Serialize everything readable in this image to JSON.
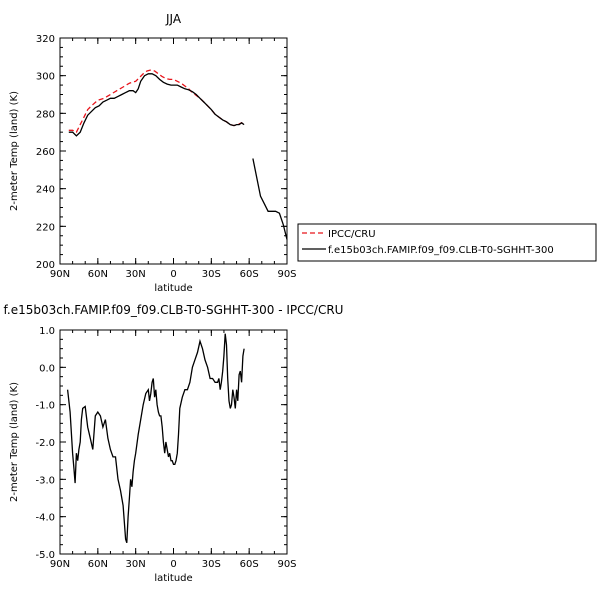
{
  "chart_data": [
    {
      "type": "line",
      "title": "JJA",
      "xlabel": "latitude",
      "ylabel": "2-meter Temp (land) (K)",
      "xlim": [
        90,
        -90
      ],
      "ylim": [
        200,
        320
      ],
      "xtick_values": [
        90,
        60,
        30,
        0,
        -30,
        -60,
        -90
      ],
      "xtick_labels": [
        "90N",
        "60N",
        "30N",
        "0",
        "30S",
        "60S",
        "90S"
      ],
      "ytick_values": [
        200,
        220,
        240,
        260,
        280,
        300,
        320
      ],
      "ytick_labels": [
        "200",
        "220",
        "240",
        "260",
        "280",
        "300",
        "320"
      ],
      "legend_position": "right",
      "series": [
        {
          "name": "IPCC/CRU",
          "color": "#e8141b",
          "dash": true,
          "x": [
            83,
            80,
            77,
            74,
            71,
            68,
            65,
            60,
            55,
            50,
            45,
            40,
            35,
            30,
            27,
            24,
            21,
            18,
            15,
            12,
            9,
            6,
            3,
            0,
            -3,
            -6,
            -9,
            -12,
            -15,
            -18,
            -21,
            -24,
            -27,
            -30,
            -33,
            -36,
            -39,
            -42,
            -45,
            -48,
            -51,
            -54,
            -56
          ],
          "y": [
            271,
            271,
            270,
            274,
            278,
            282,
            284,
            287,
            288,
            290,
            292,
            294,
            296,
            297,
            299,
            301,
            302.5,
            303,
            302.5,
            301,
            299.5,
            298.5,
            298,
            298,
            297,
            296,
            294.5,
            293,
            291,
            289.5,
            288,
            286,
            284,
            282,
            279.5,
            278,
            276.5,
            275.5,
            274,
            273.5,
            274,
            275,
            274
          ]
        },
        {
          "name": "f.e15b03ch.FAMIP.f09_f09.CLB-T0-SGHHT-300",
          "color": "#000000",
          "dash": false,
          "x": [
            83,
            80,
            77,
            74,
            71,
            68,
            65,
            62,
            59,
            56,
            53,
            50,
            47,
            44,
            41,
            38,
            35,
            32,
            30,
            28,
            26,
            23,
            20,
            17,
            14,
            11,
            8,
            5,
            2,
            0,
            -3,
            -6,
            -9,
            -12,
            -15,
            -18,
            -21,
            -24,
            -27,
            -30,
            -33,
            -36,
            -39,
            -42,
            -45,
            -48,
            -50,
            -52,
            -54,
            -56
          ],
          "y": [
            270,
            270,
            268,
            270,
            275,
            279,
            281,
            283,
            284,
            286,
            287,
            288,
            288,
            289,
            290,
            291,
            292,
            292,
            291,
            293,
            297,
            300,
            301,
            301,
            300,
            298,
            296.5,
            295.5,
            295,
            295,
            295,
            294,
            293,
            292.5,
            291.5,
            290,
            288,
            286,
            284,
            282,
            279.5,
            278,
            276.5,
            275.5,
            274,
            273.5,
            274,
            274,
            275,
            274
          ],
          "x2": [
            -63,
            -66,
            -69,
            -72,
            -75,
            -78,
            -81,
            -84,
            -87,
            -90
          ],
          "y2": [
            256,
            246,
            236,
            232,
            228,
            228,
            228,
            227,
            221,
            213
          ]
        }
      ]
    },
    {
      "type": "line",
      "title": "f.e15b03ch.FAMIP.f09_f09.CLB-T0-SGHHT-300 - IPCC/CRU",
      "xlabel": "latitude",
      "ylabel": "2-meter Temp (land) (K)",
      "xlim": [
        90,
        -90
      ],
      "ylim": [
        -5,
        1
      ],
      "xtick_values": [
        90,
        60,
        30,
        0,
        -30,
        -60,
        -90
      ],
      "xtick_labels": [
        "90N",
        "60N",
        "30N",
        "0",
        "30S",
        "60S",
        "90S"
      ],
      "ytick_values": [
        1,
        0,
        -1,
        -2,
        -3,
        -4,
        -5
      ],
      "ytick_labels": [
        "1.0",
        "0.0",
        "-1.0",
        "-2.0",
        "-3.0",
        "-4.0",
        "-5.0"
      ],
      "series": [
        {
          "name": "",
          "color": "#000000",
          "dash": false,
          "x": [
            84,
            82,
            80,
            79,
            78,
            77,
            76,
            75,
            74,
            73,
            72,
            70,
            68,
            66,
            64,
            62,
            60,
            58,
            56,
            54,
            52,
            50,
            48,
            46,
            44,
            42,
            40,
            38,
            37,
            36,
            35,
            34,
            33,
            32,
            31,
            30,
            28,
            26,
            24,
            22,
            20,
            19,
            18,
            17,
            16,
            15,
            14,
            13,
            12,
            11,
            10,
            9,
            8,
            7,
            6,
            5,
            4,
            3,
            2,
            1,
            0,
            -1,
            -2,
            -3,
            -4,
            -5,
            -7,
            -9,
            -11,
            -13,
            -15,
            -17,
            -19,
            -21,
            -23,
            -25,
            -27,
            -29,
            -31,
            -33,
            -35,
            -36,
            -37,
            -38,
            -39,
            -40,
            -41,
            -42,
            -43,
            -44,
            -45,
            -46,
            -47,
            -48,
            -49,
            -50,
            -51,
            -52,
            -53,
            -54,
            -55,
            -56
          ],
          "y": [
            -0.6,
            -1.2,
            -2.3,
            -2.7,
            -3.1,
            -2.3,
            -2.5,
            -2.2,
            -2.0,
            -1.4,
            -1.1,
            -1.05,
            -1.6,
            -1.9,
            -2.2,
            -1.3,
            -1.2,
            -1.3,
            -1.6,
            -1.4,
            -1.9,
            -2.2,
            -2.4,
            -2.4,
            -3.0,
            -3.3,
            -3.7,
            -4.6,
            -4.7,
            -4.0,
            -3.5,
            -3.0,
            -3.2,
            -2.8,
            -2.5,
            -2.3,
            -1.8,
            -1.4,
            -1.0,
            -0.7,
            -0.6,
            -0.9,
            -0.7,
            -0.4,
            -0.3,
            -0.8,
            -0.6,
            -1.0,
            -1.2,
            -1.3,
            -1.3,
            -1.6,
            -2.0,
            -2.3,
            -2.0,
            -2.2,
            -2.4,
            -2.3,
            -2.5,
            -2.5,
            -2.6,
            -2.6,
            -2.5,
            -2.3,
            -1.8,
            -1.1,
            -0.8,
            -0.6,
            -0.6,
            -0.4,
            0.0,
            0.2,
            0.4,
            0.7,
            0.5,
            0.2,
            0.0,
            -0.3,
            -0.3,
            -0.4,
            -0.4,
            -0.3,
            -0.6,
            -0.4,
            -0.1,
            0.3,
            0.9,
            0.6,
            -0.3,
            -0.9,
            -1.1,
            -1.0,
            -0.6,
            -0.8,
            -1.1,
            -0.6,
            -0.9,
            -0.2,
            -0.1,
            -0.4,
            0.3,
            0.5
          ]
        }
      ]
    }
  ]
}
